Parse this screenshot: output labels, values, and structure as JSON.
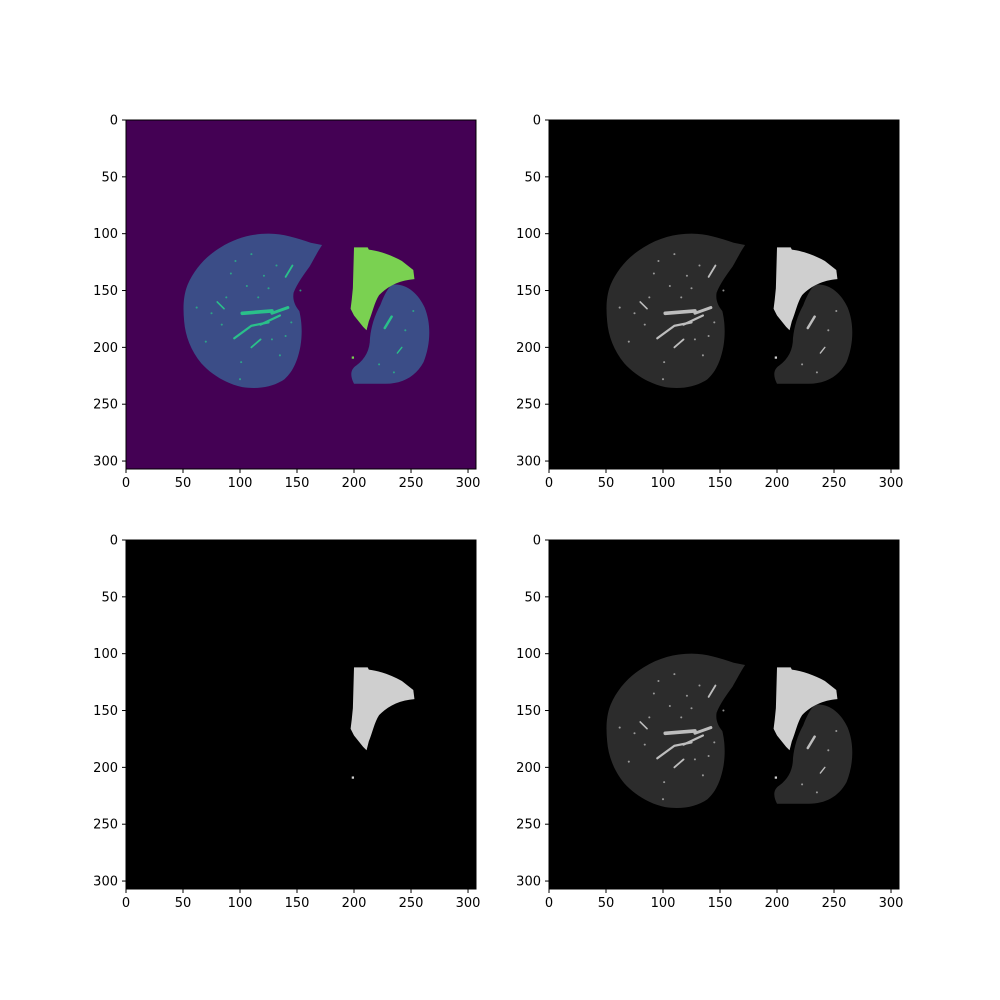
{
  "figure": {
    "panels": [
      {
        "id": "panel-top-left",
        "colormap": "viridis",
        "background_color": "#440154",
        "lung_tissue_color": "#3b4d87",
        "vessel_color": "#2ac08a",
        "highlight_color": "#7ad151",
        "layers": [
          "lungs",
          "highlight"
        ],
        "x_ticks": [
          "0",
          "50",
          "100",
          "150",
          "200",
          "250",
          "300"
        ],
        "y_ticks": [
          "0",
          "50",
          "100",
          "150",
          "200",
          "250",
          "300"
        ]
      },
      {
        "id": "panel-top-right",
        "colormap": "gray",
        "background_color": "#000000",
        "lung_tissue_color": "#2c2c2c",
        "vessel_color": "#bdbdbd",
        "highlight_color": "#cfcfcf",
        "layers": [
          "lungs",
          "highlight"
        ],
        "x_ticks": [
          "0",
          "50",
          "100",
          "150",
          "200",
          "250",
          "300"
        ],
        "y_ticks": [
          "0",
          "50",
          "100",
          "150",
          "200",
          "250",
          "300"
        ]
      },
      {
        "id": "panel-bottom-left",
        "colormap": "gray",
        "background_color": "#000000",
        "lung_tissue_color": "#2c2c2c",
        "vessel_color": "#bdbdbd",
        "highlight_color": "#cfcfcf",
        "layers": [
          "highlight"
        ],
        "x_ticks": [
          "0",
          "50",
          "100",
          "150",
          "200",
          "250",
          "300"
        ],
        "y_ticks": [
          "0",
          "50",
          "100",
          "150",
          "200",
          "250",
          "300"
        ]
      },
      {
        "id": "panel-bottom-right",
        "colormap": "gray",
        "background_color": "#000000",
        "lung_tissue_color": "#2c2c2c",
        "vessel_color": "#bdbdbd",
        "highlight_color": "#cfcfcf",
        "layers": [
          "lungs",
          "highlight"
        ],
        "x_ticks": [
          "0",
          "50",
          "100",
          "150",
          "200",
          "250",
          "300"
        ],
        "y_ticks": [
          "0",
          "50",
          "100",
          "150",
          "200",
          "250",
          "300"
        ]
      }
    ]
  }
}
